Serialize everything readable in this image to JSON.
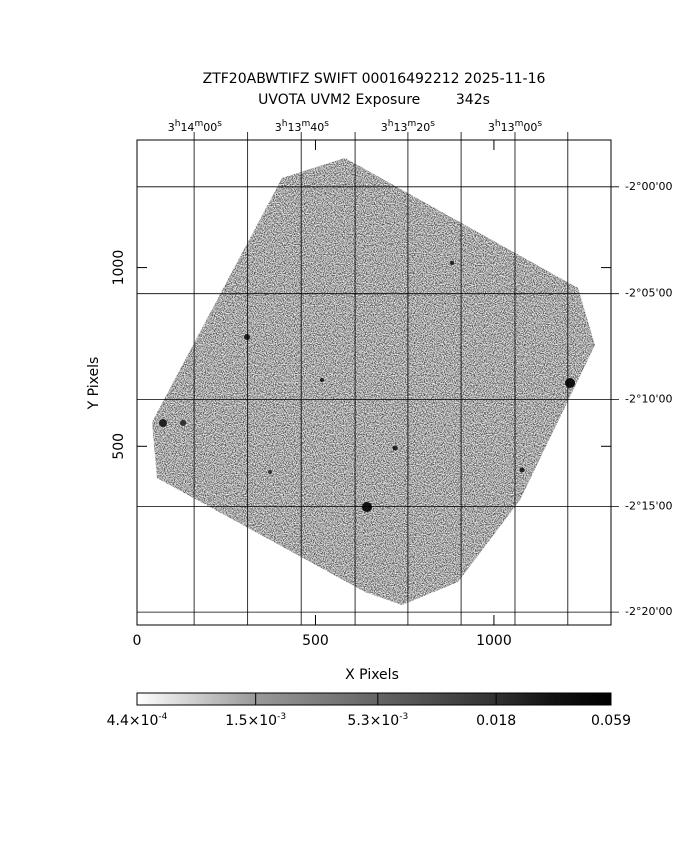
{
  "chart_data": {
    "type": "image",
    "title": "ZTF20ABWTIFZ SWIFT 00016492212 2025-11-16",
    "subtitle": "UVOTA UVM2 Exposure        342s",
    "x_label": "X Pixels",
    "y_label": "Y Pixels",
    "xlim": [
      0,
      1328
    ],
    "ylim": [
      0,
      1357
    ],
    "xticks": [
      0,
      500,
      1000
    ],
    "yticks": [
      500,
      1000
    ],
    "x2ticks": [
      {
        "value": 162,
        "label": "3h14m00s"
      },
      {
        "value": 462,
        "label": "3h13m40s"
      },
      {
        "value": 759,
        "label": "3h13m20s"
      },
      {
        "value": 1059,
        "label": "3h13m00s"
      }
    ],
    "x2grid": [
      160,
      310,
      460,
      611,
      759,
      908,
      1059,
      1207
    ],
    "y2ticks": [
      {
        "value": 1226,
        "label": "-2°00'00"
      },
      {
        "value": 927,
        "label": "-2°05'00"
      },
      {
        "value": 631,
        "label": "-2°10'00"
      },
      {
        "value": 332,
        "label": "-2°15'00"
      },
      {
        "value": 36,
        "label": "-2°20'00"
      }
    ],
    "grid": true,
    "colorbar": {
      "scale": "log",
      "lim": [
        0.00044,
        0.059
      ],
      "ticks": [
        {
          "value": 0.00044,
          "label": "4.4×10-4"
        },
        {
          "value": 0.0015,
          "label": "1.5×10-3"
        },
        {
          "value": 0.0053,
          "label": "5.3×10-3"
        },
        0.018,
        0.059
      ]
    }
  }
}
